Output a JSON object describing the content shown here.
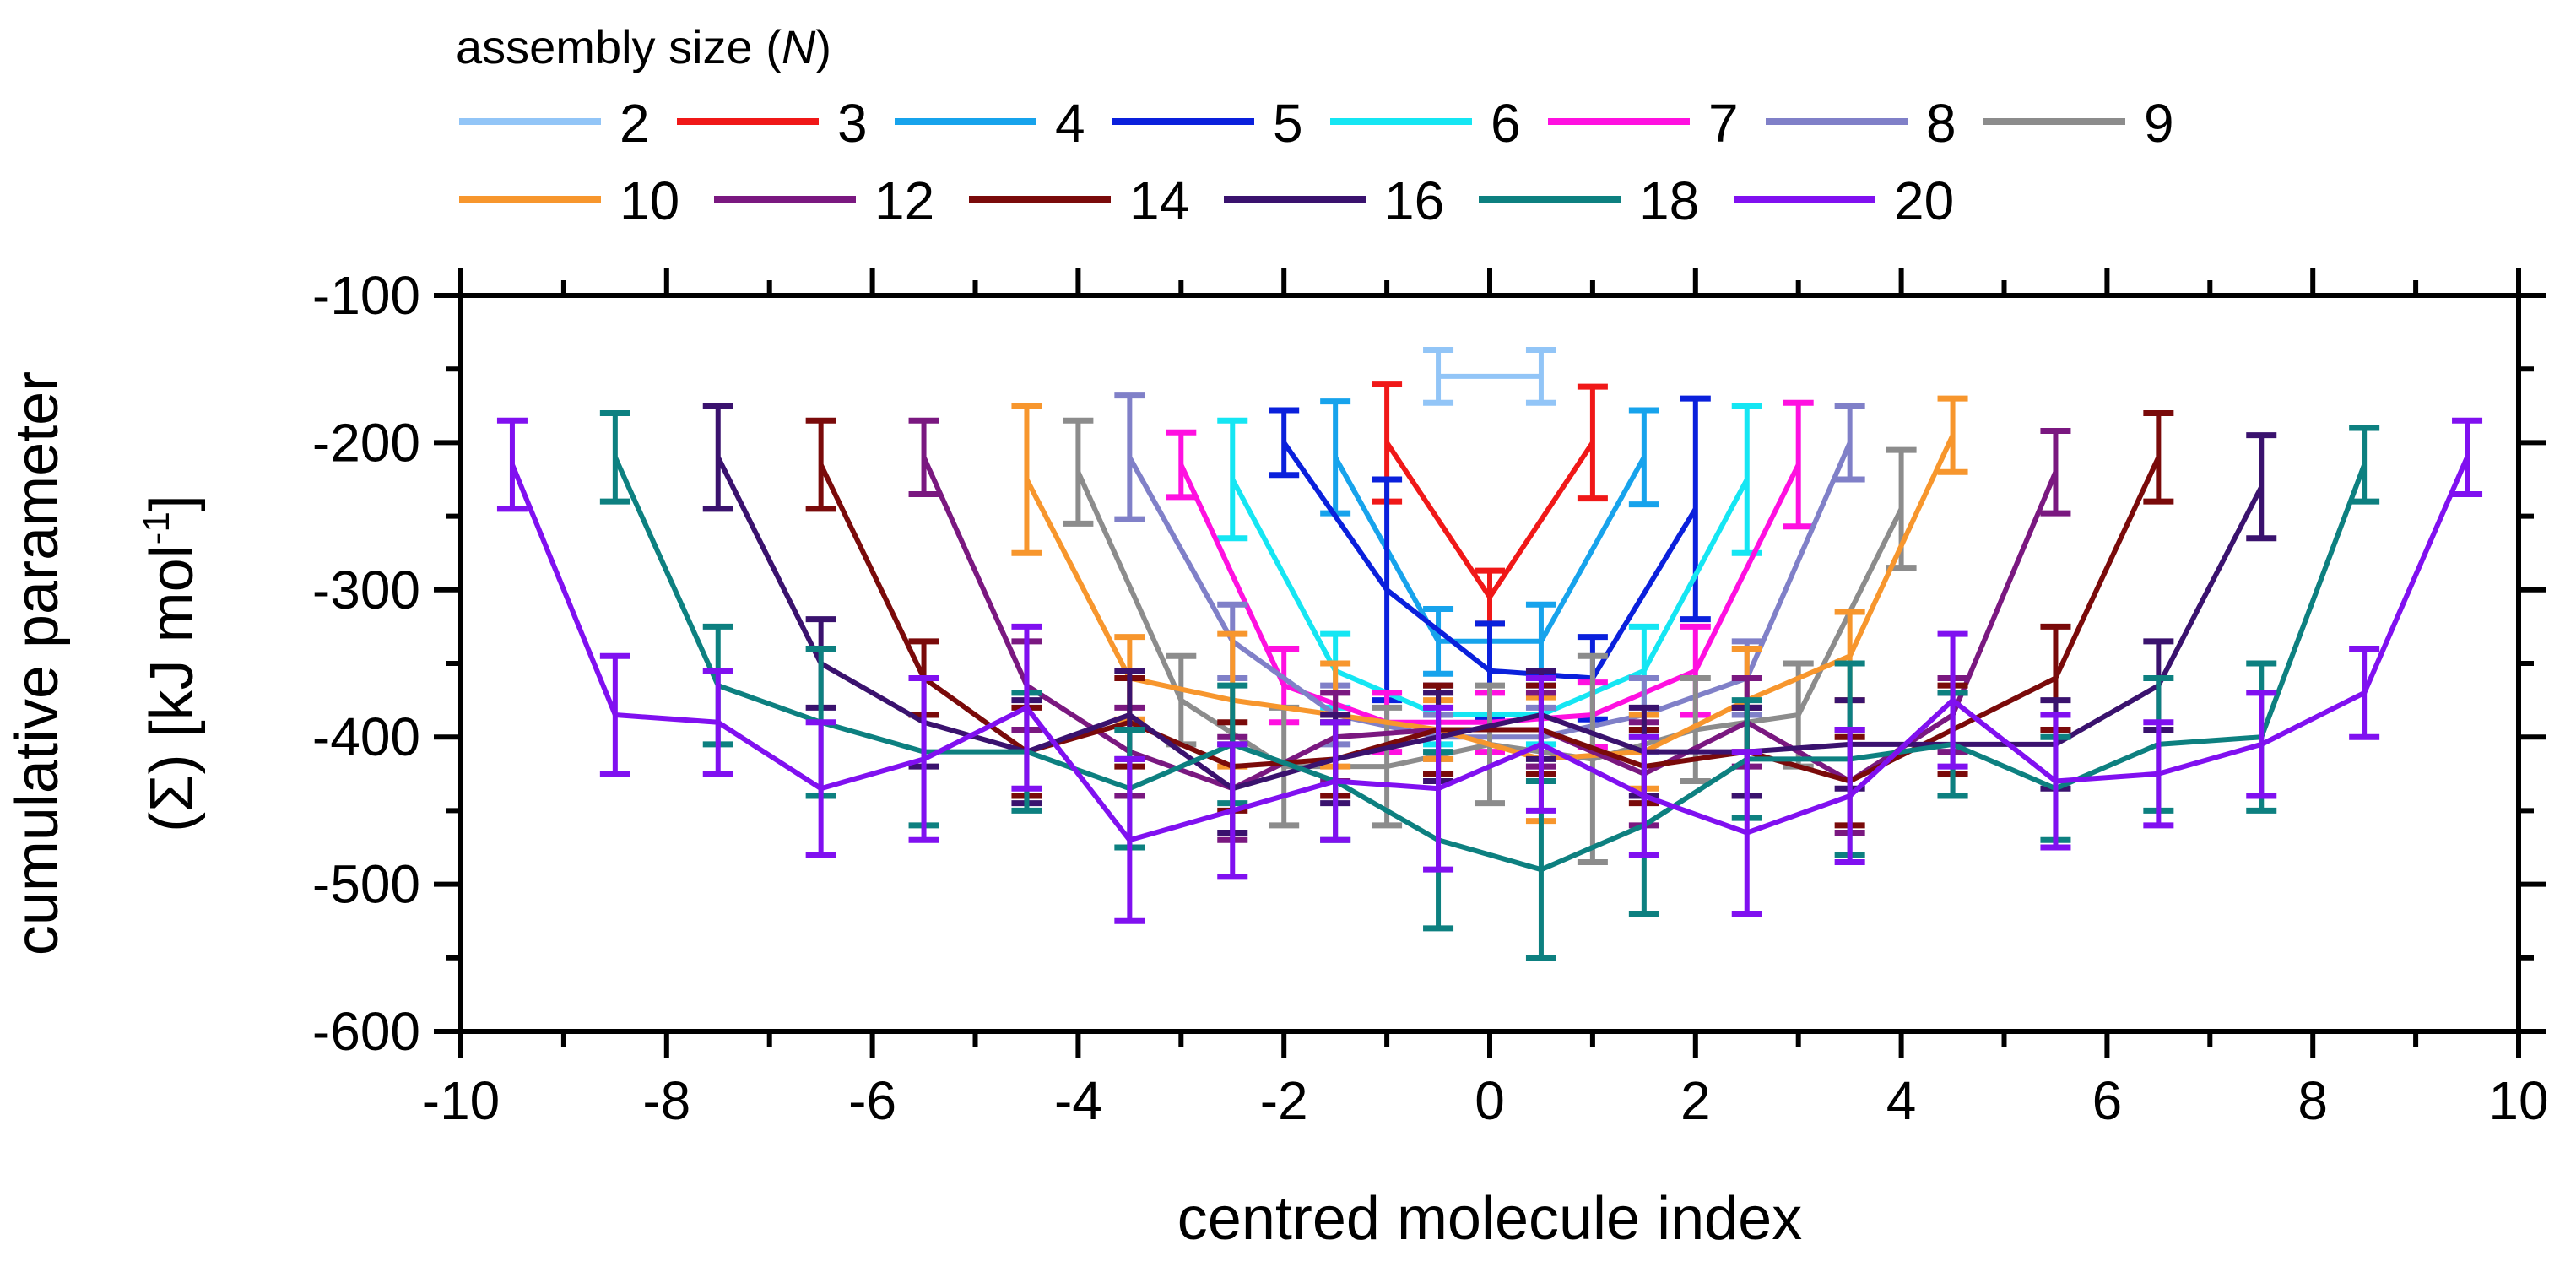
{
  "chart_data": {
    "type": "line",
    "title": "",
    "xlabel": "centred molecule index",
    "ylabel_line1": "cumulative parameter",
    "ylabel_line2_prefix": "(Σ) [kJ mol",
    "ylabel_sup": "-1",
    "ylabel_suffix": "]",
    "xlim": [
      -10,
      10
    ],
    "ylim": [
      -600,
      -100
    ],
    "xticks": [
      -10,
      -8,
      -6,
      -4,
      -2,
      0,
      2,
      4,
      6,
      8,
      10
    ],
    "yticks": [
      -100,
      -200,
      -300,
      -400,
      -500,
      -600
    ],
    "legend": {
      "title_prefix": "assembly size (",
      "title_var": "N",
      "title_suffix": ")",
      "placement": "top"
    },
    "series": [
      {
        "name": "2",
        "color": "#92c5f7",
        "x": [
          -0.5,
          0.5
        ],
        "y": [
          -155,
          -155
        ],
        "err": [
          18,
          18
        ]
      },
      {
        "name": "3",
        "color": "#f01818",
        "x": [
          -1,
          0,
          1
        ],
        "y": [
          -200,
          -305,
          -200
        ],
        "err": [
          40,
          18,
          38
        ]
      },
      {
        "name": "4",
        "color": "#17a3ec",
        "x": [
          -1.5,
          -0.5,
          0.5,
          1.5
        ],
        "y": [
          -210,
          -335,
          -335,
          -210
        ],
        "err": [
          38,
          22,
          25,
          32
        ]
      },
      {
        "name": "5",
        "color": "#0a20dc",
        "x": [
          -2,
          -1,
          0,
          1,
          2
        ],
        "y": [
          -200,
          -300,
          -355,
          -360,
          -245
        ],
        "err": [
          22,
          75,
          32,
          28,
          75
        ]
      },
      {
        "name": "6",
        "color": "#15e6f3",
        "x": [
          -2.5,
          -1.5,
          -0.5,
          0.5,
          1.5,
          2.5
        ],
        "y": [
          -225,
          -355,
          -385,
          -385,
          -355,
          -225
        ],
        "err": [
          40,
          25,
          20,
          20,
          30,
          50
        ]
      },
      {
        "name": "7",
        "color": "#ff10e0",
        "x": [
          -3,
          -2,
          -1,
          0,
          1,
          2,
          3
        ],
        "y": [
          -215,
          -365,
          -390,
          -390,
          -385,
          -355,
          -215
        ],
        "err": [
          22,
          25,
          20,
          20,
          22,
          30,
          42
        ]
      },
      {
        "name": "8",
        "color": "#8080c8",
        "x": [
          -3.5,
          -2.5,
          -1.5,
          -0.5,
          0.5,
          1.5,
          2.5,
          3.5
        ],
        "y": [
          -210,
          -335,
          -385,
          -400,
          -400,
          -385,
          -360,
          -200
        ],
        "err": [
          42,
          25,
          20,
          15,
          20,
          25,
          25,
          25
        ]
      },
      {
        "name": "9",
        "color": "#8c8c8c",
        "x": [
          -4,
          -3,
          -2,
          -1,
          0,
          1,
          2,
          3,
          4
        ],
        "y": [
          -220,
          -375,
          -420,
          -420,
          -405,
          -415,
          -395,
          -385,
          -245
        ],
        "err": [
          35,
          30,
          40,
          40,
          40,
          70,
          35,
          35,
          40
        ]
      },
      {
        "name": "10",
        "color": "#f7962d",
        "x": [
          -4.5,
          -3.5,
          -2.5,
          -1.5,
          -0.5,
          0.5,
          1.5,
          2.5,
          3.5,
          4.5
        ],
        "y": [
          -225,
          -360,
          -375,
          -385,
          -395,
          -415,
          -410,
          -375,
          -345,
          -195
        ],
        "err": [
          50,
          28,
          45,
          35,
          20,
          42,
          25,
          35,
          30,
          25
        ]
      },
      {
        "name": "12",
        "color": "#7a1880",
        "x": [
          -5.5,
          -4.5,
          -3.5,
          -2.5,
          -1.5,
          -0.5,
          0.5,
          1.5,
          2.5,
          3.5,
          4.5,
          5.5
        ],
        "y": [
          -210,
          -365,
          -410,
          -435,
          -400,
          -395,
          -395,
          -425,
          -390,
          -430,
          -385,
          -220
        ],
        "err": [
          25,
          30,
          30,
          35,
          30,
          30,
          25,
          35,
          30,
          35,
          25,
          28
        ]
      },
      {
        "name": "14",
        "color": "#7a0a0a",
        "x": [
          -6.5,
          -5.5,
          -4.5,
          -3.5,
          -2.5,
          -1.5,
          -0.5,
          0.5,
          1.5,
          2.5,
          3.5,
          4.5,
          5.5,
          6.5
        ],
        "y": [
          -215,
          -360,
          -410,
          -390,
          -420,
          -415,
          -395,
          -395,
          -420,
          -410,
          -430,
          -395,
          -360,
          -210
        ],
        "err": [
          30,
          25,
          30,
          30,
          30,
          25,
          30,
          30,
          25,
          30,
          30,
          30,
          35,
          30
        ]
      },
      {
        "name": "16",
        "color": "#3a126e",
        "x": [
          -7.5,
          -6.5,
          -5.5,
          -4.5,
          -3.5,
          -2.5,
          -1.5,
          -0.5,
          0.5,
          1.5,
          2.5,
          3.5,
          4.5,
          5.5,
          6.5,
          7.5
        ],
        "y": [
          -210,
          -350,
          -390,
          -410,
          -385,
          -435,
          -415,
          -400,
          -385,
          -410,
          -410,
          -405,
          -405,
          -405,
          -365,
          -230
        ],
        "err": [
          35,
          30,
          30,
          35,
          30,
          30,
          30,
          30,
          30,
          30,
          30,
          30,
          35,
          30,
          30,
          35
        ]
      },
      {
        "name": "18",
        "color": "#0d8080",
        "x": [
          -8.5,
          -7.5,
          -6.5,
          -5.5,
          -4.5,
          -3.5,
          -2.5,
          -1.5,
          -0.5,
          0.5,
          1.5,
          2.5,
          3.5,
          4.5,
          5.5,
          6.5,
          7.5,
          8.5
        ],
        "y": [
          -210,
          -365,
          -390,
          -410,
          -410,
          -435,
          -405,
          -430,
          -470,
          -490,
          -460,
          -415,
          -415,
          -405,
          -435,
          -405,
          -400,
          -215
        ],
        "err": [
          30,
          40,
          50,
          50,
          40,
          40,
          40,
          40,
          60,
          60,
          60,
          40,
          65,
          35,
          35,
          45,
          50,
          25
        ]
      },
      {
        "name": "20",
        "color": "#8010f0",
        "x": [
          -9.5,
          -8.5,
          -7.5,
          -6.5,
          -5.5,
          -4.5,
          -3.5,
          -2.5,
          -1.5,
          -0.5,
          0.5,
          1.5,
          2.5,
          3.5,
          4.5,
          5.5,
          6.5,
          7.5,
          8.5,
          9.5
        ],
        "y": [
          -215,
          -385,
          -390,
          -435,
          -415,
          -380,
          -470,
          -450,
          -430,
          -435,
          -405,
          -440,
          -465,
          -440,
          -375,
          -430,
          -425,
          -405,
          -370,
          -210
        ],
        "err": [
          30,
          40,
          35,
          45,
          55,
          55,
          55,
          45,
          40,
          55,
          45,
          40,
          55,
          45,
          45,
          45,
          35,
          35,
          30,
          25
        ]
      }
    ]
  }
}
